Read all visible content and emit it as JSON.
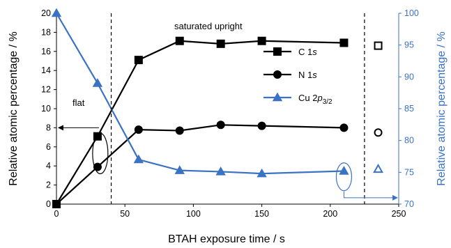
{
  "chart_data": {
    "type": "line",
    "xlabel": "BTAH exposure time / s",
    "ylabel_left": "Relative atomic percentage / %",
    "ylabel_right": "Relative atomic percentage / %",
    "xlim": [
      0,
      250
    ],
    "ylim_left": [
      0,
      20
    ],
    "ylim_right": [
      70,
      100
    ],
    "x_ticks": [
      "0",
      "50",
      "100",
      "150",
      "200",
      "250"
    ],
    "y_left_ticks": [
      "0",
      "2",
      "4",
      "6",
      "8",
      "10",
      "12",
      "14",
      "16",
      "18",
      "20"
    ],
    "y_right_ticks": [
      "70",
      "75",
      "80",
      "85",
      "90",
      "95",
      "100"
    ],
    "colors": {
      "black": "#000000",
      "blue": "#3a72c4"
    },
    "series": [
      {
        "name_main": "C 1",
        "name_italic": "s",
        "axis": "left",
        "marker": "square",
        "color": "#000000",
        "x": [
          0,
          30,
          60,
          90,
          120,
          150,
          210
        ],
        "y": [
          0,
          7.1,
          15.1,
          17.1,
          16.8,
          17.1,
          16.9
        ]
      },
      {
        "name_main": "N 1",
        "name_italic": "s",
        "axis": "left",
        "marker": "circle",
        "color": "#000000",
        "x": [
          0,
          30,
          60,
          90,
          120,
          150,
          210
        ],
        "y": [
          0,
          3.9,
          7.8,
          7.7,
          8.3,
          8.2,
          8.0
        ]
      },
      {
        "name_main": "Cu 2",
        "name_italic": "p",
        "name_sub": "3/2",
        "axis": "right",
        "marker": "triangle",
        "color": "#3a72c4",
        "x": [
          0,
          30,
          60,
          90,
          120,
          150,
          210
        ],
        "y": [
          100,
          89,
          77,
          75.3,
          75.1,
          74.8,
          75.2
        ]
      }
    ],
    "reference_markers": [
      {
        "marker": "square",
        "axis": "left",
        "x": 235,
        "y": 16.6,
        "color": "#000000"
      },
      {
        "marker": "circle",
        "axis": "left",
        "x": 235,
        "y": 7.5,
        "color": "#000000"
      },
      {
        "marker": "triangle",
        "axis": "right",
        "x": 235,
        "y": 75.5,
        "color": "#3a72c4"
      }
    ],
    "vlines": [
      40,
      225
    ],
    "annotations": {
      "flat": "flat",
      "saturated": "saturated upright"
    }
  }
}
